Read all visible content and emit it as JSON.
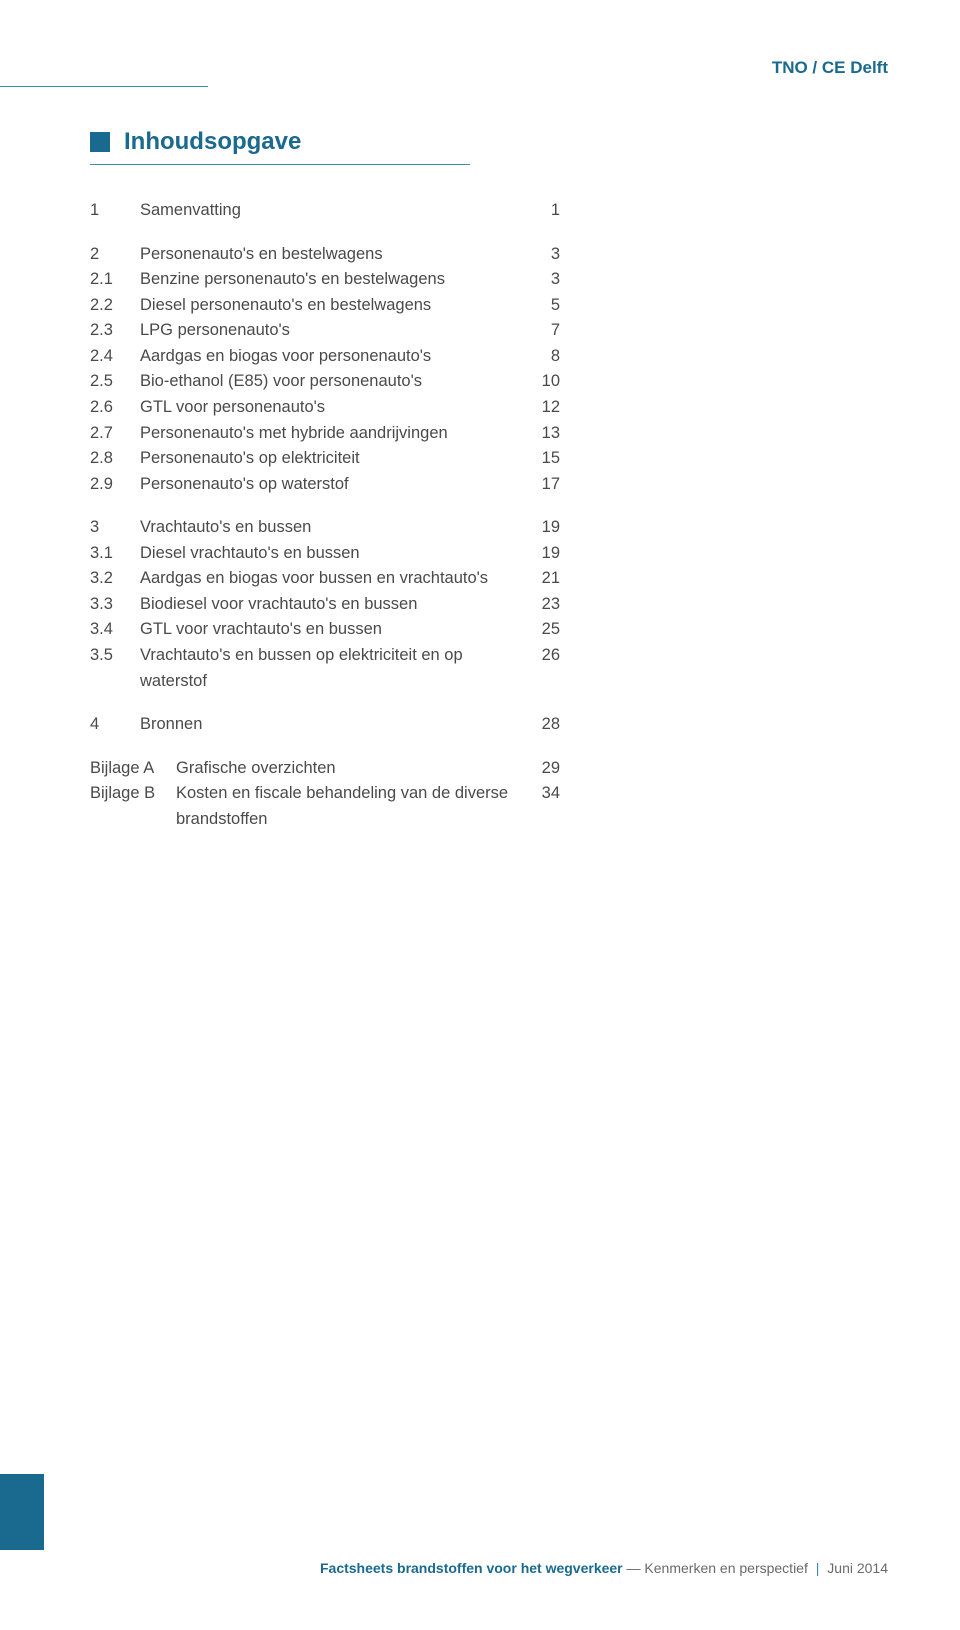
{
  "org": "TNO / CE Delft",
  "title": "Inhoudsopgave",
  "toc": [
    {
      "num": "1",
      "label": "Samenvatting",
      "page": "1"
    },
    {
      "gap": true
    },
    {
      "num": "2",
      "label": "Personenauto's en bestelwagens",
      "page": "3"
    },
    {
      "num": "2.1",
      "label": "Benzine personenauto's en bestelwagens",
      "page": "3"
    },
    {
      "num": "2.2",
      "label": "Diesel personenauto's en bestelwagens",
      "page": "5"
    },
    {
      "num": "2.3",
      "label": "LPG personenauto's",
      "page": "7"
    },
    {
      "num": "2.4",
      "label": "Aardgas en biogas voor personenauto's",
      "page": "8"
    },
    {
      "num": "2.5",
      "label": "Bio-ethanol (E85) voor personenauto's",
      "page": "10"
    },
    {
      "num": "2.6",
      "label": "GTL voor personenauto's",
      "page": "12"
    },
    {
      "num": "2.7",
      "label": "Personenauto's met hybride aandrijvingen",
      "page": "13"
    },
    {
      "num": "2.8",
      "label": "Personenauto's op elektriciteit",
      "page": "15"
    },
    {
      "num": "2.9",
      "label": "Personenauto's op waterstof",
      "page": "17"
    },
    {
      "gap": true
    },
    {
      "num": "3",
      "label": "Vrachtauto's en bussen",
      "page": "19"
    },
    {
      "num": "3.1",
      "label": "Diesel vrachtauto's en bussen",
      "page": "19"
    },
    {
      "num": "3.2",
      "label": "Aardgas en biogas voor bussen en vrachtauto's",
      "page": "21"
    },
    {
      "num": "3.3",
      "label": "Biodiesel voor vrachtauto's en bussen",
      "page": "23"
    },
    {
      "num": "3.4",
      "label": "GTL voor vrachtauto's en bussen",
      "page": "25"
    },
    {
      "num": "3.5",
      "label": "Vrachtauto's en bussen op elektriciteit en op waterstof",
      "page": "26"
    },
    {
      "gap": true
    },
    {
      "num": "4",
      "label": "Bronnen",
      "page": "28"
    }
  ],
  "attachments": [
    {
      "lbl": "Bijlage A",
      "text": "Grafische overzichten",
      "page": "29"
    },
    {
      "lbl": "Bijlage B",
      "text": "Kosten en fiscale behandeling van de diverse brandstoffen",
      "page": "34"
    }
  ],
  "footer": {
    "bold": "Factsheets brandstoffen voor het wegverkeer",
    "light": "Kenmerken en perspectief",
    "date": "Juni 2014"
  },
  "colors": {
    "brand": "#1a6a8f",
    "rule": "#3a8aa8",
    "text": "#4a4a4a",
    "footer_light": "#6a6a6a",
    "bg": "#ffffff"
  }
}
